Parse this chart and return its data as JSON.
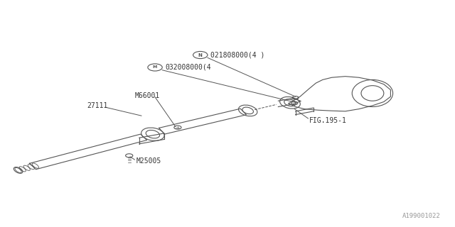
{
  "bg_color": "#ffffff",
  "line_color": "#555555",
  "text_color": "#333333",
  "fig_width": 6.4,
  "fig_height": 3.2,
  "dpi": 100,
  "watermark": "A199001022",
  "labels": {
    "N_text": "021808000(4 )",
    "M_text": "032008000(4",
    "M66001": "M66001",
    "27111": "27111",
    "M25005": "M25005",
    "FIG": "FIG.195-1"
  }
}
